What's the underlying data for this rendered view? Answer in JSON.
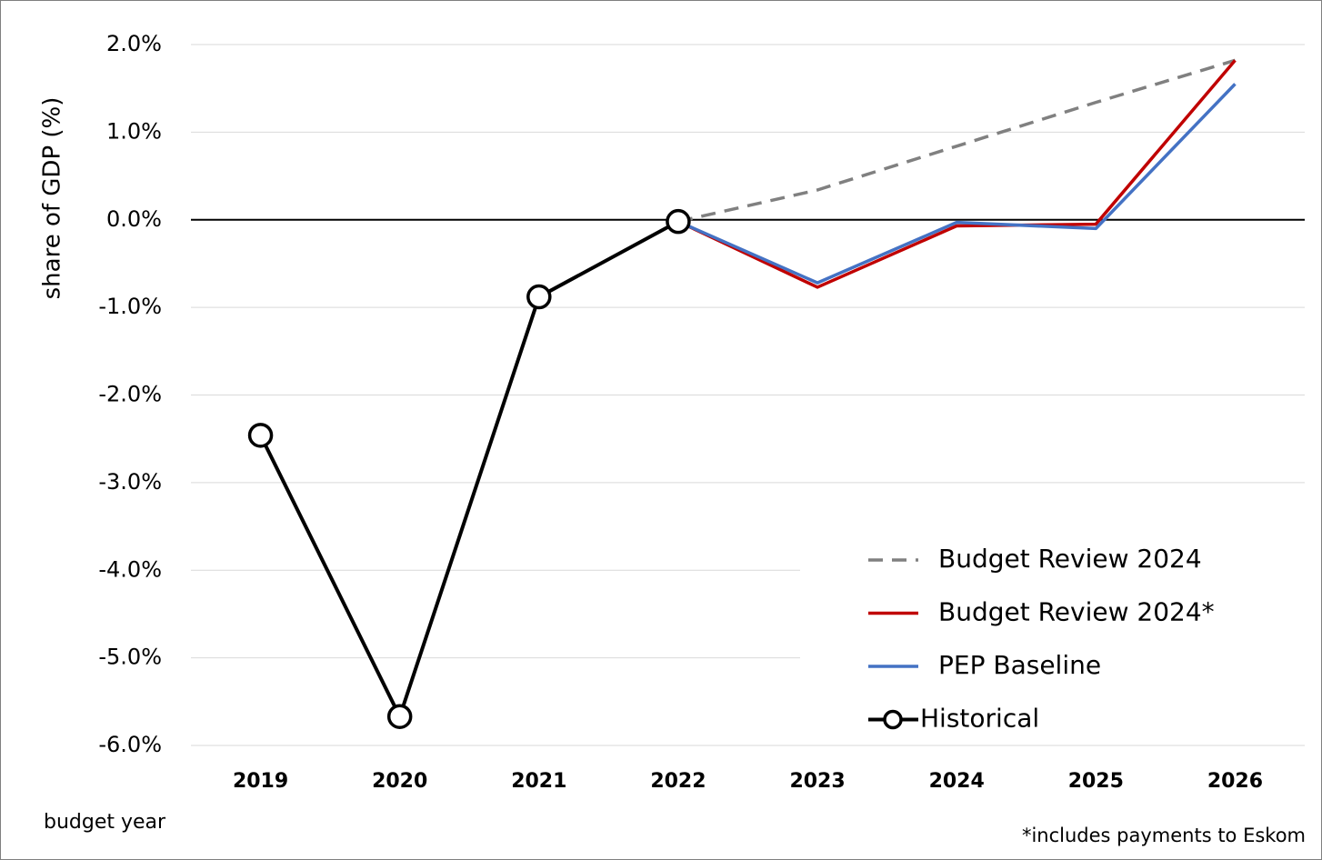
{
  "chart_data": {
    "type": "line",
    "y_label": "share of GDP (%)",
    "x_label": "budget year",
    "footnote": "*includes payments to Eskom",
    "categories": [
      "2019",
      "2020",
      "2021",
      "2022",
      "2023",
      "2024",
      "2025",
      "2026"
    ],
    "series": [
      {
        "name": "Budget Review 2024",
        "color": "#808080",
        "dash": true,
        "values": [
          null,
          null,
          null,
          -0.02,
          0.34,
          0.84,
          1.34,
          1.82
        ]
      },
      {
        "name": "Budget Review 2024*",
        "color": "#c00000",
        "values": [
          null,
          null,
          null,
          -0.02,
          -0.77,
          -0.07,
          -0.05,
          1.82
        ]
      },
      {
        "name": "PEP Baseline",
        "color": "#4472c4",
        "values": [
          null,
          null,
          null,
          -0.02,
          -0.72,
          -0.03,
          -0.1,
          1.55
        ]
      },
      {
        "name": "Historical",
        "color": "#000000",
        "markers": true,
        "values": [
          -2.46,
          -5.67,
          -0.88,
          -0.02,
          null,
          null,
          null,
          null
        ]
      }
    ],
    "ylim": [
      -6,
      2
    ],
    "yticks": [
      {
        "value": -6,
        "label": "-6.0%"
      },
      {
        "value": -5,
        "label": "-5.0%"
      },
      {
        "value": -4,
        "label": "-4.0%"
      },
      {
        "value": -3,
        "label": "-3.0%"
      },
      {
        "value": -2,
        "label": "-2.0%"
      },
      {
        "value": -1,
        "label": "-1.0%"
      },
      {
        "value": 0,
        "label": "0.0%"
      },
      {
        "value": 1,
        "label": "1.0%"
      },
      {
        "value": 2,
        "label": "2.0%"
      }
    ],
    "grid": true,
    "legend": "lower right"
  }
}
